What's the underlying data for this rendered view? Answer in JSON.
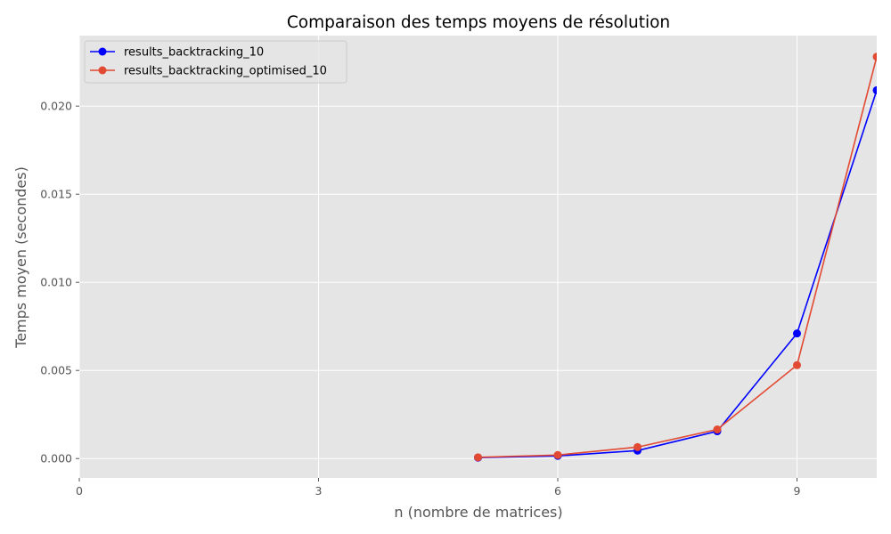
{
  "chart_data": {
    "type": "line",
    "title": "Comparaison des temps moyens de résolution",
    "xlabel": "n (nombre de matrices)",
    "ylabel": "Temps moyen (secondes)",
    "xlim": [
      0,
      10
    ],
    "ylim": [
      -0.0011,
      0.024
    ],
    "xticks": [
      0,
      3,
      6,
      9
    ],
    "yticks": [
      0.0,
      0.005,
      0.01,
      0.015,
      0.02
    ],
    "grid": true,
    "legend_position": "top-left",
    "series": [
      {
        "name": "results_backtracking_10",
        "color": "#0000ff",
        "x": [
          5,
          6,
          7,
          8,
          9,
          10
        ],
        "y": [
          5e-05,
          0.00015,
          0.00045,
          0.00155,
          0.0071,
          0.0209
        ]
      },
      {
        "name": "results_backtracking_optimised_10",
        "color": "#e24a33",
        "x": [
          5,
          6,
          7,
          8,
          9,
          10
        ],
        "y": [
          7e-05,
          0.0002,
          0.00065,
          0.00165,
          0.0053,
          0.0228
        ]
      }
    ]
  }
}
